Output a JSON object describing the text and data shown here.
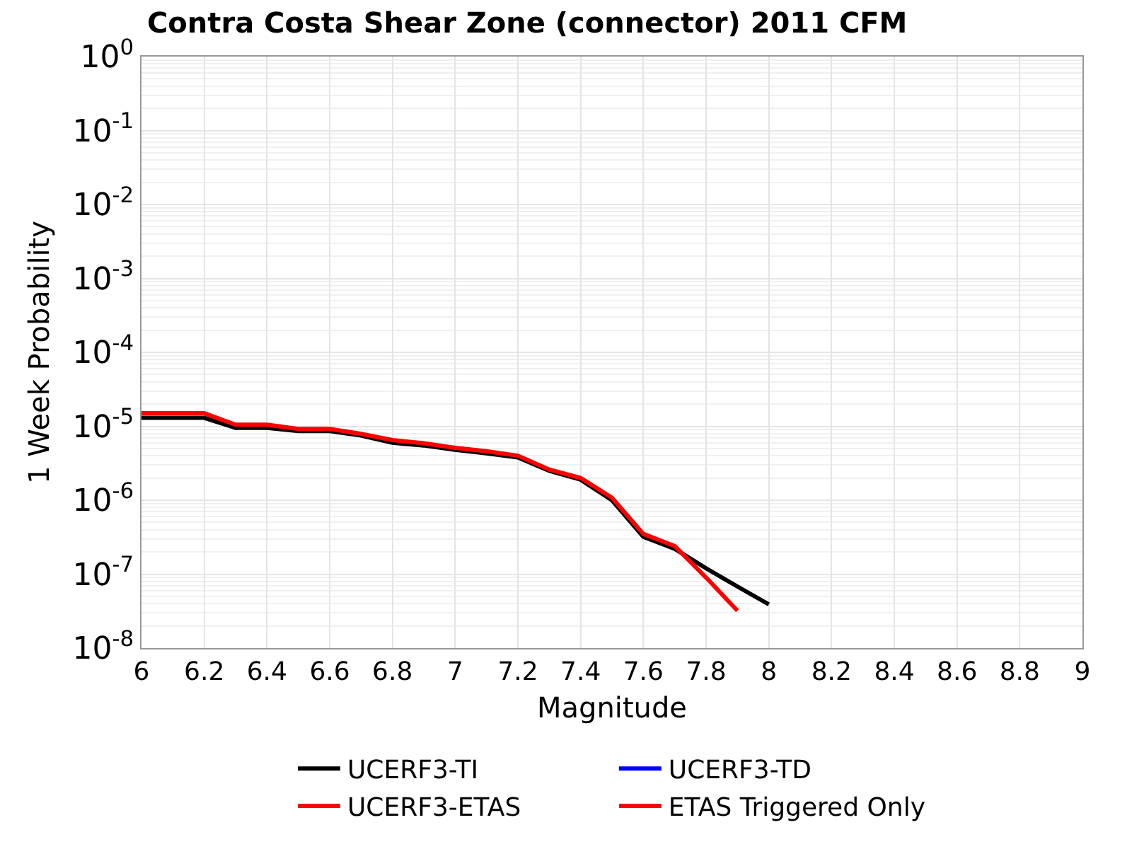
{
  "chart_data": {
    "type": "line",
    "title": "Contra Costa Shear Zone (connector) 2011 CFM",
    "xlabel": "Magnitude",
    "ylabel": "1 Week Probability",
    "x": [
      6.0,
      6.1,
      6.2,
      6.3,
      6.4,
      6.5,
      6.6,
      6.7,
      6.8,
      6.9,
      7.0,
      7.1,
      7.2,
      7.3,
      7.4,
      7.5,
      7.6,
      7.7,
      7.8,
      7.9,
      8.0
    ],
    "series": [
      {
        "name": "UCERF3-TI",
        "color": "#000000",
        "values": [
          1.3e-05,
          1.3e-05,
          1.3e-05,
          9.5e-06,
          9.5e-06,
          8.6e-06,
          8.6e-06,
          7.5e-06,
          6e-06,
          5.5e-06,
          4.8e-06,
          4.3e-06,
          3.8e-06,
          2.5e-06,
          1.9e-06,
          1e-06,
          3.2e-07,
          2.2e-07,
          1.2e-07,
          6.8e-08,
          3.9e-08
        ]
      },
      {
        "name": "UCERF3-TD",
        "color": "#0000ff",
        "values": [
          null,
          null,
          null,
          null,
          null,
          null,
          null,
          null,
          null,
          null,
          null,
          null,
          null,
          null,
          null,
          null,
          null,
          null,
          null,
          null,
          null
        ]
      },
      {
        "name": "UCERF3-ETAS",
        "color": "#ff0000",
        "values": [
          1.5e-05,
          1.5e-05,
          1.5e-05,
          1.05e-05,
          1.05e-05,
          9.2e-06,
          9.2e-06,
          7.9e-06,
          6.5e-06,
          5.9e-06,
          5.1e-06,
          4.6e-06,
          4e-06,
          2.6e-06,
          2e-06,
          1.08e-06,
          3.5e-07,
          2.4e-07,
          9e-08,
          3.2e-08,
          null
        ]
      },
      {
        "name": "ETAS Triggered Only",
        "color": "#ff0000",
        "values": [
          null,
          null,
          null,
          null,
          null,
          null,
          null,
          null,
          null,
          null,
          null,
          null,
          null,
          null,
          null,
          null,
          null,
          null,
          null,
          null,
          null
        ]
      }
    ],
    "log": "y",
    "xlim": [
      6,
      9
    ],
    "ylim": [
      1e-08,
      1
    ],
    "xticks": [
      6,
      6.2,
      6.4,
      6.6,
      6.8,
      7,
      7.2,
      7.4,
      7.6,
      7.8,
      8,
      8.2,
      8.4,
      8.6,
      8.8,
      9
    ],
    "yticks": [
      {
        "value": 1e-08,
        "label": "10$^{-8}$"
      },
      {
        "value": 1e-07,
        "label": "10$^{-7}$"
      },
      {
        "value": 1e-06,
        "label": "10$^{-6}$"
      },
      {
        "value": 1e-05,
        "label": "10$^{-5}$"
      },
      {
        "value": 0.0001,
        "label": "10$^{-4}$"
      },
      {
        "value": 0.001,
        "label": "10$^{-3}$"
      },
      {
        "value": 0.01,
        "label": "10$^{-2}$"
      },
      {
        "value": 0.1,
        "label": "10$^{-1}$"
      },
      {
        "value": 1,
        "label": "10$^{0}$"
      }
    ],
    "grid": true,
    "legend": "bottom",
    "marker": "none",
    "line_style": "solid"
  }
}
